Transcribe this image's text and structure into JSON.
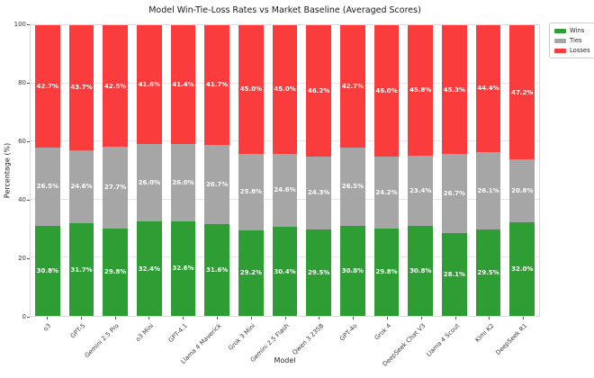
{
  "chart_data": {
    "type": "bar",
    "stacked": true,
    "title": "Model Win-Tie-Loss Rates vs Market Baseline (Averaged Scores)",
    "xlabel": "Model",
    "ylabel": "Percentage (%)",
    "ylim": [
      0,
      100
    ],
    "yticks": [
      0,
      20,
      40,
      60,
      80,
      100
    ],
    "grid": true,
    "legend_position": "upper-right-outside",
    "categories": [
      "o3",
      "GPT-5",
      "Gemini 2.5 Pro",
      "o3 Mini",
      "GPT-4.1",
      "Llama 4 Maverick",
      "Grok 3 Mini",
      "Gemini 2.5 Flash",
      "Qwen 3 235B",
      "GPT-4o",
      "Grok 4",
      "DeepSeek Chat V3",
      "Llama 4 Scout",
      "Kimi K2",
      "DeepSeek R1"
    ],
    "series": [
      {
        "name": "Wins",
        "color": "#2e9d33",
        "values": [
          30.8,
          31.7,
          29.8,
          32.4,
          32.6,
          31.6,
          29.2,
          30.4,
          29.5,
          30.8,
          29.8,
          30.8,
          28.1,
          29.5,
          32.0
        ]
      },
      {
        "name": "Ties",
        "color": "#a6a6a6",
        "values": [
          26.5,
          24.6,
          27.7,
          26.0,
          26.0,
          26.7,
          25.8,
          24.6,
          24.3,
          26.5,
          24.2,
          23.4,
          26.7,
          26.1,
          20.8
        ]
      },
      {
        "name": "Losses",
        "color": "#fa3c3c",
        "values": [
          42.7,
          43.7,
          42.5,
          41.6,
          41.4,
          41.7,
          45.0,
          45.0,
          46.2,
          42.7,
          46.0,
          45.8,
          45.3,
          44.4,
          47.2
        ]
      }
    ]
  }
}
